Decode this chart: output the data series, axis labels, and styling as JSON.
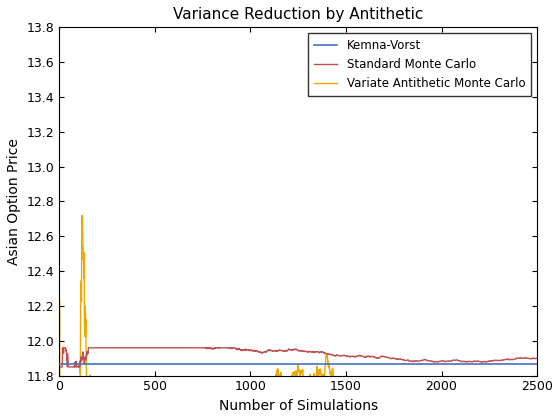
{
  "title": "Variance Reduction by Antithetic",
  "xlabel": "Number of Simulations",
  "ylabel": "Asian Option Price",
  "xlim": [
    0,
    2500
  ],
  "ylim": [
    11.8,
    13.8
  ],
  "yticks": [
    11.8,
    12.0,
    12.2,
    12.4,
    12.6,
    12.8,
    13.0,
    13.2,
    13.4,
    13.6,
    13.8
  ],
  "xticks": [
    0,
    500,
    1000,
    1500,
    2000,
    2500
  ],
  "kemna_vorst_value": 11.867,
  "standard_mc_value": 11.91,
  "legend_labels": [
    "Kemna-Vorst",
    "Standard Monte Carlo",
    "Variate Antithetic Monte Carlo"
  ],
  "kemna_color": "#4472c4",
  "standard_color": "#c0504d",
  "antithetic_color": "#f0a800",
  "background_color": "#ffffff",
  "title_fontsize": 11,
  "label_fontsize": 10
}
